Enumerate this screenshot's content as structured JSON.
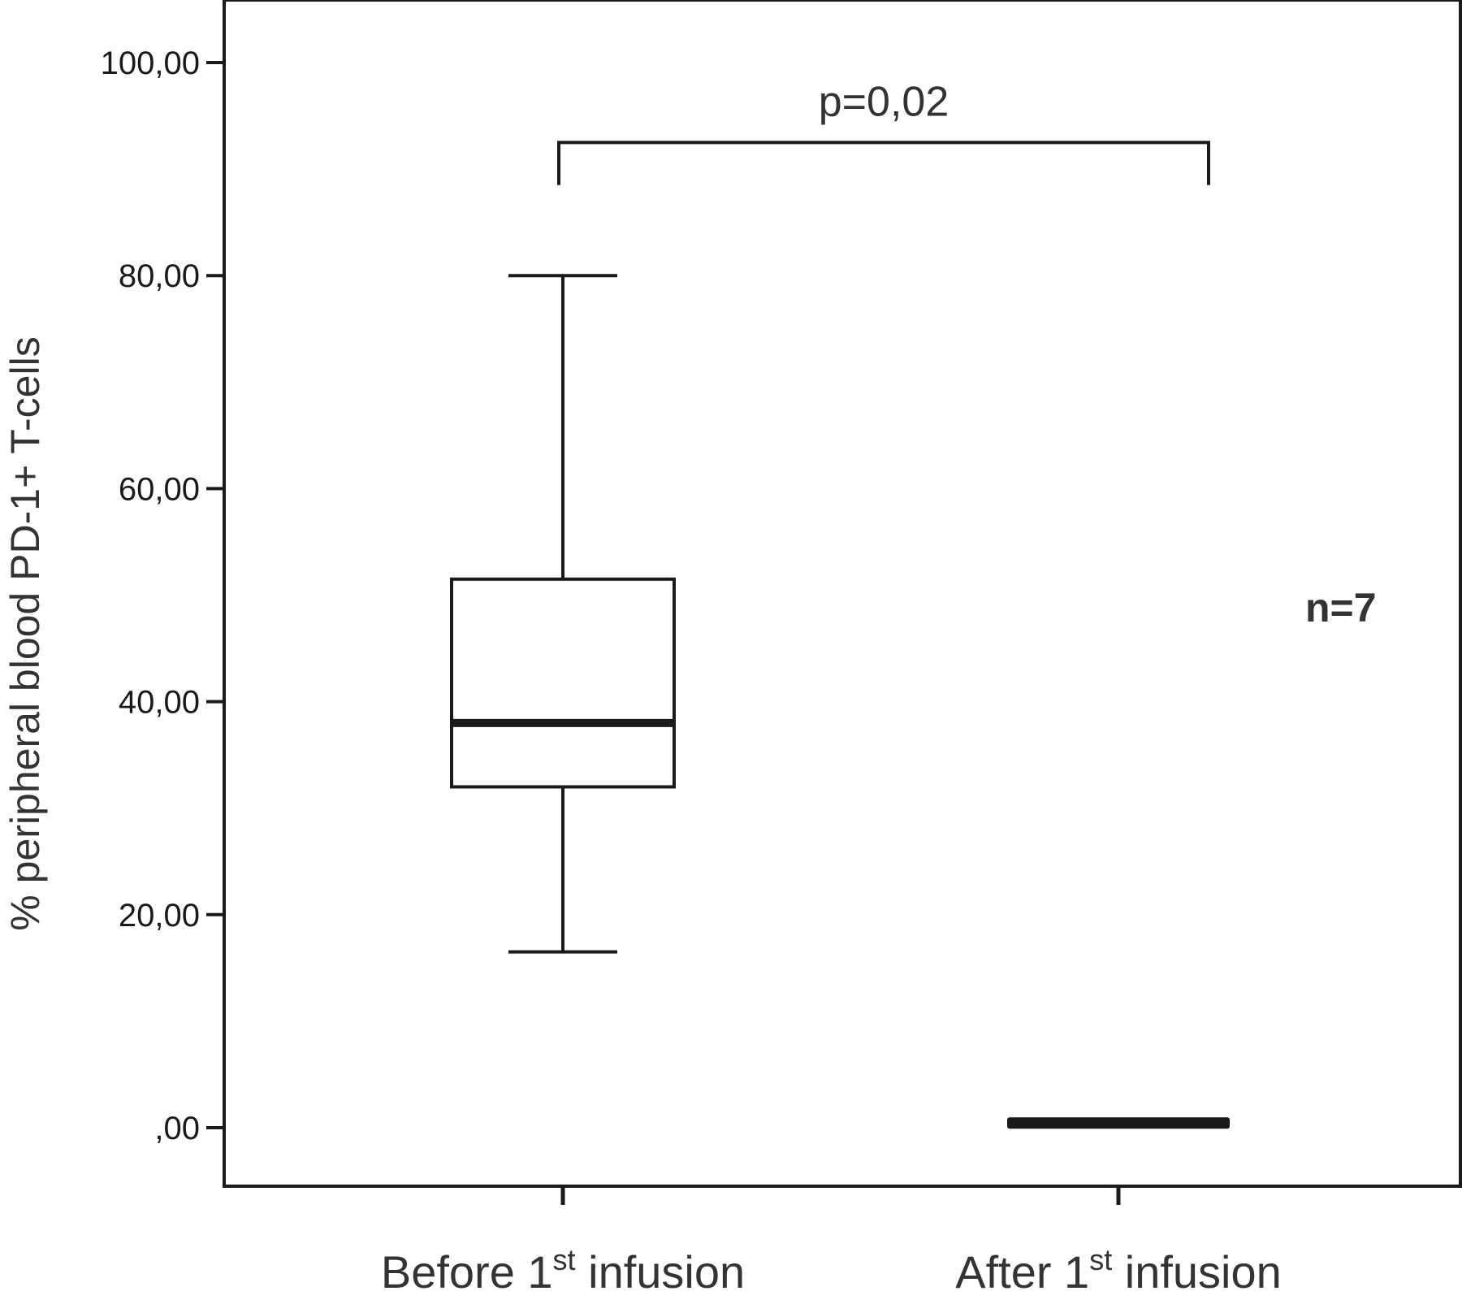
{
  "chart_data": {
    "type": "box",
    "ylabel": "% peripheral blood PD-1+ T-cells",
    "ylim": [
      -5.5,
      105
    ],
    "yticks": [
      0,
      20,
      40,
      60,
      80,
      100
    ],
    "ytick_labels": [
      ",00",
      "20,00",
      "40,00",
      "60,00",
      "80,00",
      "100,00"
    ],
    "categories": [
      {
        "label": "Before 1",
        "sup": "st",
        "suffix": " infusion"
      },
      {
        "label": "After 1",
        "sup": "st",
        "suffix": " infusion"
      }
    ],
    "boxes": [
      {
        "whisker_low": 16.5,
        "q1": 32,
        "median": 38,
        "q3": 51.5,
        "whisker_high": 80
      },
      {
        "whisker_low": 0.2,
        "q1": 0.2,
        "median": 0.5,
        "q3": 0.9,
        "whisker_high": 0.9
      }
    ],
    "annotation": {
      "text": "p=0,02",
      "bracket_y": 92.5,
      "bracket_end_y": 88.5
    },
    "n_label": "n=7",
    "grid": false
  }
}
